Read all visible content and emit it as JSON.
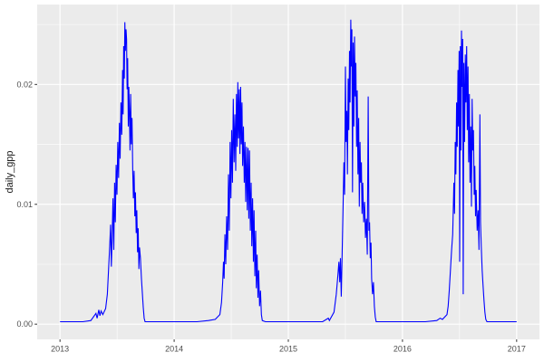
{
  "chart_data": {
    "type": "line",
    "title": "",
    "xlabel": "",
    "ylabel": "daily_gpp",
    "xlim": [
      2013,
      2017
    ],
    "ylim": [
      0,
      0.0254
    ],
    "expansion": 0.05,
    "grid": true,
    "legend": "none",
    "x_major_ticks": [
      {
        "value": 2013,
        "label": "2013"
      },
      {
        "value": 2014,
        "label": "2014"
      },
      {
        "value": 2015,
        "label": "2015"
      },
      {
        "value": 2016,
        "label": "2016"
      },
      {
        "value": 2017,
        "label": "2017"
      }
    ],
    "y_major_ticks": [
      {
        "value": 0.0,
        "label": "0.00"
      },
      {
        "value": 0.01,
        "label": "0.01"
      },
      {
        "value": 0.02,
        "label": "0.02"
      }
    ],
    "x_minor_ticks": [
      2013.5,
      2014.5,
      2015.5,
      2016.5
    ],
    "y_minor_ticks": [
      0.005,
      0.015,
      0.025
    ],
    "theme": {
      "panel_bg": "#EBEBEB",
      "grid_color": "#FFFFFF",
      "plot_bg": "#FFFFFF",
      "axis_text_color": "#4D4D4D",
      "axis_title_color": "#1A1A1A",
      "tick_color": "#333333"
    },
    "series": [
      {
        "name": "daily_gpp",
        "color": "#0000FF",
        "points": [
          [
            2013.0,
            0.0002
          ],
          [
            2013.1,
            0.0002
          ],
          [
            2013.2,
            0.0002
          ],
          [
            2013.27,
            0.0003
          ],
          [
            2013.315,
            0.0009
          ],
          [
            2013.325,
            0.0005
          ],
          [
            2013.34,
            0.0012
          ],
          [
            2013.35,
            0.0007
          ],
          [
            2013.36,
            0.0011
          ],
          [
            2013.375,
            0.0008
          ],
          [
            2013.4,
            0.0013
          ],
          [
            2013.415,
            0.0025
          ],
          [
            2013.425,
            0.0045
          ],
          [
            2013.435,
            0.0065
          ],
          [
            2013.443,
            0.0083
          ],
          [
            2013.45,
            0.0048
          ],
          [
            2013.457,
            0.0072
          ],
          [
            2013.464,
            0.0105
          ],
          [
            2013.471,
            0.0062
          ],
          [
            2013.478,
            0.0118
          ],
          [
            2013.485,
            0.0085
          ],
          [
            2013.492,
            0.0133
          ],
          [
            2013.499,
            0.0108
          ],
          [
            2013.506,
            0.0152
          ],
          [
            2013.513,
            0.0122
          ],
          [
            2013.52,
            0.0168
          ],
          [
            2013.527,
            0.0138
          ],
          [
            2013.534,
            0.0185
          ],
          [
            2013.541,
            0.0158
          ],
          [
            2013.548,
            0.0212
          ],
          [
            2013.553,
            0.0175
          ],
          [
            2013.558,
            0.0232
          ],
          [
            2013.563,
            0.0205
          ],
          [
            2013.568,
            0.0252
          ],
          [
            2013.573,
            0.0228
          ],
          [
            2013.578,
            0.0246
          ],
          [
            2013.583,
            0.0238
          ],
          [
            2013.588,
            0.0196
          ],
          [
            2013.593,
            0.0222
          ],
          [
            2013.598,
            0.0165
          ],
          [
            2013.603,
            0.0198
          ],
          [
            2013.608,
            0.0178
          ],
          [
            2013.613,
            0.0145
          ],
          [
            2013.619,
            0.0192
          ],
          [
            2013.625,
            0.015
          ],
          [
            2013.631,
            0.0172
          ],
          [
            2013.637,
            0.0128
          ],
          [
            2013.643,
            0.0105
          ],
          [
            2013.649,
            0.0128
          ],
          [
            2013.655,
            0.009
          ],
          [
            2013.661,
            0.011
          ],
          [
            2013.667,
            0.0076
          ],
          [
            2013.673,
            0.0095
          ],
          [
            2013.679,
            0.006
          ],
          [
            2013.685,
            0.008
          ],
          [
            2013.691,
            0.0046
          ],
          [
            2013.697,
            0.0064
          ],
          [
            2013.705,
            0.0055
          ],
          [
            2013.713,
            0.0038
          ],
          [
            2013.721,
            0.0026
          ],
          [
            2013.729,
            0.0014
          ],
          [
            2013.737,
            0.0005
          ],
          [
            2013.745,
            0.0002
          ],
          [
            2013.85,
            0.0002
          ],
          [
            2013.95,
            0.0002
          ],
          [
            2014.05,
            0.0002
          ],
          [
            2014.2,
            0.0002
          ],
          [
            2014.3,
            0.0003
          ],
          [
            2014.36,
            0.0004
          ],
          [
            2014.4,
            0.0008
          ],
          [
            2014.415,
            0.0018
          ],
          [
            2014.425,
            0.0035
          ],
          [
            2014.432,
            0.0052
          ],
          [
            2014.438,
            0.0038
          ],
          [
            2014.445,
            0.0075
          ],
          [
            2014.452,
            0.005
          ],
          [
            2014.46,
            0.009
          ],
          [
            2014.468,
            0.0062
          ],
          [
            2014.476,
            0.0125
          ],
          [
            2014.483,
            0.0078
          ],
          [
            2014.49,
            0.0152
          ],
          [
            2014.497,
            0.0105
          ],
          [
            2014.504,
            0.0162
          ],
          [
            2014.511,
            0.0118
          ],
          [
            2014.518,
            0.0188
          ],
          [
            2014.525,
            0.0135
          ],
          [
            2014.532,
            0.0175
          ],
          [
            2014.539,
            0.0128
          ],
          [
            2014.546,
            0.0192
          ],
          [
            2014.553,
            0.0148
          ],
          [
            2014.558,
            0.0202
          ],
          [
            2014.564,
            0.0155
          ],
          [
            2014.57,
            0.0196
          ],
          [
            2014.576,
            0.0142
          ],
          [
            2014.582,
            0.0198
          ],
          [
            2014.588,
            0.015
          ],
          [
            2014.594,
            0.0185
          ],
          [
            2014.6,
            0.0132
          ],
          [
            2014.607,
            0.0165
          ],
          [
            2014.614,
            0.0118
          ],
          [
            2014.62,
            0.0152
          ],
          [
            2014.627,
            0.0102
          ],
          [
            2014.634,
            0.0148
          ],
          [
            2014.64,
            0.0095
          ],
          [
            2014.647,
            0.0147
          ],
          [
            2014.654,
            0.0088
          ],
          [
            2014.66,
            0.0145
          ],
          [
            2014.667,
            0.0078
          ],
          [
            2014.674,
            0.0118
          ],
          [
            2014.68,
            0.0065
          ],
          [
            2014.687,
            0.0105
          ],
          [
            2014.694,
            0.0052
          ],
          [
            2014.7,
            0.0095
          ],
          [
            2014.707,
            0.004
          ],
          [
            2014.714,
            0.0078
          ],
          [
            2014.72,
            0.003
          ],
          [
            2014.727,
            0.0058
          ],
          [
            2014.734,
            0.0022
          ],
          [
            2014.74,
            0.0045
          ],
          [
            2014.748,
            0.0015
          ],
          [
            2014.756,
            0.0028
          ],
          [
            2014.764,
            0.0008
          ],
          [
            2014.772,
            0.0003
          ],
          [
            2014.8,
            0.0002
          ],
          [
            2014.92,
            0.0002
          ],
          [
            2015.05,
            0.0002
          ],
          [
            2015.2,
            0.0002
          ],
          [
            2015.3,
            0.0002
          ],
          [
            2015.35,
            0.0005
          ],
          [
            2015.36,
            0.0003
          ],
          [
            2015.4,
            0.001
          ],
          [
            2015.42,
            0.0025
          ],
          [
            2015.435,
            0.0042
          ],
          [
            2015.443,
            0.0052
          ],
          [
            2015.45,
            0.0035
          ],
          [
            2015.457,
            0.0055
          ],
          [
            2015.464,
            0.0023
          ],
          [
            2015.472,
            0.006
          ],
          [
            2015.48,
            0.0098
          ],
          [
            2015.487,
            0.0135
          ],
          [
            2015.493,
            0.0108
          ],
          [
            2015.5,
            0.0215
          ],
          [
            2015.506,
            0.0152
          ],
          [
            2015.512,
            0.0178
          ],
          [
            2015.518,
            0.0125
          ],
          [
            2015.524,
            0.0205
          ],
          [
            2015.53,
            0.0162
          ],
          [
            2015.536,
            0.0228
          ],
          [
            2015.541,
            0.0185
          ],
          [
            2015.547,
            0.0254
          ],
          [
            2015.552,
            0.0215
          ],
          [
            2015.557,
            0.0246
          ],
          [
            2015.562,
            0.011
          ],
          [
            2015.568,
            0.0235
          ],
          [
            2015.574,
            0.0165
          ],
          [
            2015.58,
            0.024
          ],
          [
            2015.586,
            0.019
          ],
          [
            2015.592,
            0.0218
          ],
          [
            2015.598,
            0.0148
          ],
          [
            2015.604,
            0.0195
          ],
          [
            2015.61,
            0.0125
          ],
          [
            2015.616,
            0.0172
          ],
          [
            2015.622,
            0.0098
          ],
          [
            2015.628,
            0.0152
          ],
          [
            2015.634,
            0.0118
          ],
          [
            2015.64,
            0.0135
          ],
          [
            2015.646,
            0.0092
          ],
          [
            2015.652,
            0.0118
          ],
          [
            2015.66,
            0.0085
          ],
          [
            2015.668,
            0.0102
          ],
          [
            2015.676,
            0.0072
          ],
          [
            2015.684,
            0.0088
          ],
          [
            2015.692,
            0.0058
          ],
          [
            2015.7,
            0.019
          ],
          [
            2015.706,
            0.0078
          ],
          [
            2015.712,
            0.0085
          ],
          [
            2015.718,
            0.0055
          ],
          [
            2015.724,
            0.0068
          ],
          [
            2015.73,
            0.0038
          ],
          [
            2015.738,
            0.0025
          ],
          [
            2015.746,
            0.0035
          ],
          [
            2015.754,
            0.0015
          ],
          [
            2015.762,
            0.0006
          ],
          [
            2015.77,
            0.0002
          ],
          [
            2015.85,
            0.0002
          ],
          [
            2015.95,
            0.0002
          ],
          [
            2016.05,
            0.0002
          ],
          [
            2016.2,
            0.0002
          ],
          [
            2016.3,
            0.0003
          ],
          [
            2016.33,
            0.0005
          ],
          [
            2016.35,
            0.0004
          ],
          [
            2016.39,
            0.0008
          ],
          [
            2016.4,
            0.0015
          ],
          [
            2016.41,
            0.0028
          ],
          [
            2016.42,
            0.0045
          ],
          [
            2016.43,
            0.0062
          ],
          [
            2016.44,
            0.0075
          ],
          [
            2016.45,
            0.0118
          ],
          [
            2016.456,
            0.0092
          ],
          [
            2016.462,
            0.0152
          ],
          [
            2016.468,
            0.0125
          ],
          [
            2016.474,
            0.0185
          ],
          [
            2016.48,
            0.0148
          ],
          [
            2016.486,
            0.0212
          ],
          [
            2016.491,
            0.0165
          ],
          [
            2016.496,
            0.0228
          ],
          [
            2016.501,
            0.0052
          ],
          [
            2016.507,
            0.0232
          ],
          [
            2016.512,
            0.0145
          ],
          [
            2016.517,
            0.0245
          ],
          [
            2016.522,
            0.0198
          ],
          [
            2016.527,
            0.0238
          ],
          [
            2016.532,
            0.0025
          ],
          [
            2016.538,
            0.0218
          ],
          [
            2016.544,
            0.0152
          ],
          [
            2016.55,
            0.0225
          ],
          [
            2016.556,
            0.0185
          ],
          [
            2016.562,
            0.0232
          ],
          [
            2016.568,
            0.0162
          ],
          [
            2016.574,
            0.0215
          ],
          [
            2016.58,
            0.0135
          ],
          [
            2016.586,
            0.0192
          ],
          [
            2016.592,
            0.0118
          ],
          [
            2016.598,
            0.0165
          ],
          [
            2016.604,
            0.0098
          ],
          [
            2016.61,
            0.0188
          ],
          [
            2016.616,
            0.0145
          ],
          [
            2016.622,
            0.0162
          ],
          [
            2016.628,
            0.0108
          ],
          [
            2016.634,
            0.0132
          ],
          [
            2016.64,
            0.009
          ],
          [
            2016.646,
            0.0112
          ],
          [
            2016.654,
            0.0078
          ],
          [
            2016.662,
            0.0095
          ],
          [
            2016.67,
            0.0062
          ],
          [
            2016.678,
            0.0175
          ],
          [
            2016.684,
            0.0085
          ],
          [
            2016.69,
            0.0065
          ],
          [
            2016.698,
            0.0045
          ],
          [
            2016.706,
            0.0032
          ],
          [
            2016.714,
            0.002
          ],
          [
            2016.722,
            0.001
          ],
          [
            2016.73,
            0.0004
          ],
          [
            2016.74,
            0.0002
          ],
          [
            2016.85,
            0.0002
          ],
          [
            2016.95,
            0.0002
          ],
          [
            2017.0,
            0.0002
          ]
        ]
      }
    ]
  }
}
